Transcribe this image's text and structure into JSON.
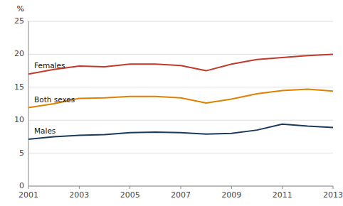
{
  "chart_data": {
    "type": "line",
    "y_label": "%",
    "x": [
      2001,
      2002,
      2003,
      2004,
      2005,
      2006,
      2007,
      2008,
      2009,
      2010,
      2011,
      2012,
      2013
    ],
    "series": [
      {
        "name": "Females",
        "color": "#c0392b",
        "values": [
          17.0,
          17.7,
          18.2,
          18.1,
          18.5,
          18.5,
          18.3,
          17.5,
          18.5,
          19.2,
          19.5,
          19.8,
          20.0
        ]
      },
      {
        "name": "Both sexes",
        "color": "#e08000",
        "values": [
          11.9,
          12.5,
          13.3,
          13.4,
          13.6,
          13.6,
          13.4,
          12.6,
          13.2,
          14.0,
          14.5,
          14.7,
          14.4
        ]
      },
      {
        "name": "Males",
        "color": "#1a3a5c",
        "values": [
          7.1,
          7.5,
          7.7,
          7.8,
          8.1,
          8.2,
          8.1,
          7.9,
          8.0,
          8.5,
          9.4,
          9.1,
          8.9
        ]
      }
    ],
    "xlim": [
      2001,
      2013
    ],
    "xticks": [
      2001,
      2003,
      2005,
      2007,
      2009,
      2011,
      2013
    ],
    "ylim": [
      0,
      25
    ],
    "yticks": [
      0,
      5,
      10,
      15,
      20,
      25
    ],
    "grid": true
  }
}
